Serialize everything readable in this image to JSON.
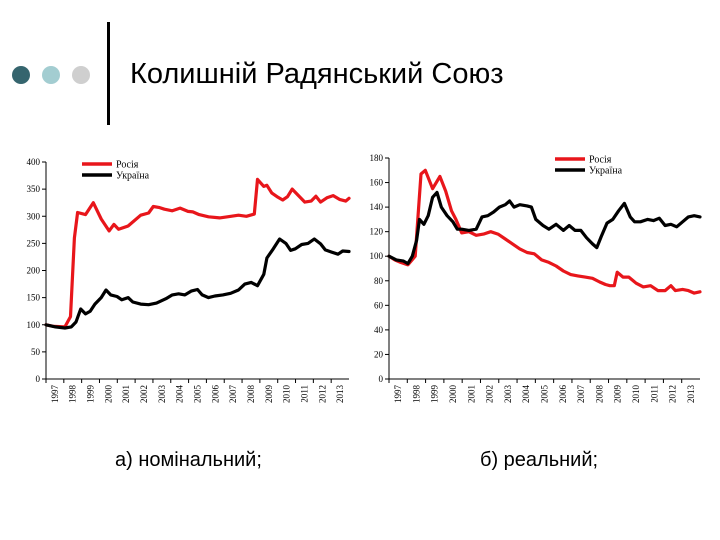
{
  "title": "Колишній Радянський Союз",
  "colors": {
    "dot1": "#35656e",
    "dot2": "#a3cdd1",
    "dot3": "#cfcfcf",
    "russia": "#e8161b",
    "ukraine": "#000000"
  },
  "captions": {
    "a": "а) номінальний;",
    "b": "б) реальний;"
  },
  "chart_data": [
    {
      "type": "line",
      "id": "a",
      "x": [
        "1997",
        "1998",
        "1999",
        "2000",
        "2001",
        "2002",
        "2003",
        "2004",
        "2005",
        "2006",
        "2007",
        "2008",
        "2009",
        "2010",
        "2011",
        "2012",
        "2013"
      ],
      "ylim": [
        0,
        400
      ],
      "yticks": [
        0,
        50,
        100,
        150,
        200,
        250,
        300,
        350,
        400
      ],
      "legend": "top-left",
      "series": [
        {
          "name": "Росія",
          "color": "#e8161b",
          "points": [
            [
              0,
              100
            ],
            [
              0.5,
              97
            ],
            [
              1.2,
              96
            ],
            [
              1.55,
              115
            ],
            [
              1.8,
              260
            ],
            [
              2.0,
              307
            ],
            [
              2.5,
              303
            ],
            [
              3.0,
              325
            ],
            [
              3.5,
              295
            ],
            [
              4.0,
              273
            ],
            [
              4.3,
              285
            ],
            [
              4.6,
              276
            ],
            [
              5.2,
              282
            ],
            [
              6.0,
              302
            ],
            [
              6.5,
              306
            ],
            [
              6.8,
              318
            ],
            [
              7.2,
              316
            ],
            [
              7.5,
              313
            ],
            [
              8.0,
              310
            ],
            [
              8.5,
              315
            ],
            [
              9.0,
              309
            ],
            [
              9.3,
              308
            ],
            [
              9.7,
              303
            ],
            [
              10.3,
              299
            ],
            [
              11.0,
              297
            ],
            [
              11.5,
              299
            ],
            [
              12.2,
              302
            ],
            [
              12.7,
              300
            ],
            [
              13.2,
              304
            ],
            [
              13.4,
              368
            ],
            [
              13.8,
              355
            ],
            [
              14.0,
              357
            ],
            [
              14.3,
              343
            ],
            [
              14.7,
              335
            ],
            [
              15.0,
              330
            ],
            [
              15.3,
              336
            ],
            [
              15.6,
              350
            ],
            [
              16.0,
              338
            ],
            [
              16.4,
              326
            ],
            [
              16.8,
              328
            ],
            [
              17.1,
              337
            ],
            [
              17.4,
              326
            ],
            [
              17.8,
              334
            ],
            [
              18.2,
              338
            ],
            [
              18.6,
              331
            ],
            [
              19.0,
              328
            ],
            [
              19.2,
              333
            ]
          ]
        },
        {
          "name": "Україна",
          "color": "#000000",
          "points": [
            [
              0,
              100
            ],
            [
              0.6,
              96
            ],
            [
              1.2,
              94
            ],
            [
              1.6,
              96
            ],
            [
              1.9,
              105
            ],
            [
              2.2,
              129
            ],
            [
              2.5,
              120
            ],
            [
              2.8,
              125
            ],
            [
              3.1,
              138
            ],
            [
              3.5,
              150
            ],
            [
              3.8,
              164
            ],
            [
              4.1,
              155
            ],
            [
              4.5,
              152
            ],
            [
              4.8,
              146
            ],
            [
              5.2,
              150
            ],
            [
              5.5,
              142
            ],
            [
              6.0,
              138
            ],
            [
              6.5,
              137
            ],
            [
              7.0,
              140
            ],
            [
              7.6,
              148
            ],
            [
              8.0,
              155
            ],
            [
              8.4,
              157
            ],
            [
              8.8,
              155
            ],
            [
              9.2,
              162
            ],
            [
              9.6,
              165
            ],
            [
              9.9,
              155
            ],
            [
              10.3,
              150
            ],
            [
              10.7,
              153
            ],
            [
              11.2,
              155
            ],
            [
              11.7,
              158
            ],
            [
              12.2,
              164
            ],
            [
              12.6,
              175
            ],
            [
              13.0,
              178
            ],
            [
              13.4,
              172
            ],
            [
              13.8,
              193
            ],
            [
              14.0,
              223
            ],
            [
              14.4,
              240
            ],
            [
              14.8,
              258
            ],
            [
              15.2,
              250
            ],
            [
              15.5,
              237
            ],
            [
              15.8,
              240
            ],
            [
              16.2,
              248
            ],
            [
              16.6,
              250
            ],
            [
              17.0,
              258
            ],
            [
              17.4,
              249
            ],
            [
              17.7,
              238
            ],
            [
              18.1,
              234
            ],
            [
              18.5,
              230
            ],
            [
              18.8,
              236
            ],
            [
              19.2,
              235
            ]
          ]
        }
      ]
    },
    {
      "type": "line",
      "id": "b",
      "x": [
        "1997",
        "1998",
        "1999",
        "2000",
        "2001",
        "2002",
        "2003",
        "2004",
        "2005",
        "2006",
        "2007",
        "2008",
        "2009",
        "2010",
        "2011",
        "2012",
        "2013"
      ],
      "ylim": [
        0,
        180
      ],
      "yticks": [
        0,
        20,
        40,
        60,
        80,
        100,
        120,
        140,
        160,
        180
      ],
      "legend": "top-right",
      "series": [
        {
          "name": "Росія",
          "color": "#e8161b",
          "points": [
            [
              0,
              100
            ],
            [
              0.4,
              97
            ],
            [
              0.8,
              95
            ],
            [
              1.3,
              93
            ],
            [
              1.8,
              100
            ],
            [
              2.2,
              167
            ],
            [
              2.5,
              170
            ],
            [
              3.0,
              155
            ],
            [
              3.5,
              165
            ],
            [
              3.9,
              153
            ],
            [
              4.3,
              137
            ],
            [
              4.6,
              130
            ],
            [
              5.0,
              119
            ],
            [
              5.5,
              120
            ],
            [
              6.0,
              117
            ],
            [
              6.5,
              118
            ],
            [
              7.0,
              120
            ],
            [
              7.5,
              118
            ],
            [
              8.0,
              114
            ],
            [
              8.5,
              110
            ],
            [
              9.0,
              106
            ],
            [
              9.5,
              103
            ],
            [
              10.0,
              102
            ],
            [
              10.5,
              97
            ],
            [
              11.0,
              95
            ],
            [
              11.5,
              92
            ],
            [
              12.0,
              88
            ],
            [
              12.5,
              85
            ],
            [
              13.0,
              84
            ],
            [
              13.5,
              83
            ],
            [
              14.0,
              82
            ],
            [
              14.5,
              79
            ],
            [
              14.9,
              77
            ],
            [
              15.2,
              76
            ],
            [
              15.5,
              76
            ],
            [
              15.7,
              87
            ],
            [
              16.1,
              83
            ],
            [
              16.5,
              83
            ],
            [
              17.0,
              78
            ],
            [
              17.5,
              75
            ],
            [
              18.0,
              76
            ],
            [
              18.5,
              72
            ],
            [
              19.0,
              72
            ],
            [
              19.4,
              76
            ],
            [
              19.7,
              72
            ],
            [
              20.2,
              73
            ],
            [
              20.6,
              72
            ],
            [
              21.0,
              70
            ],
            [
              21.4,
              71
            ]
          ]
        },
        {
          "name": "Україна",
          "color": "#000000",
          "points": [
            [
              0,
              100
            ],
            [
              0.5,
              97
            ],
            [
              1.0,
              96
            ],
            [
              1.3,
              94
            ],
            [
              1.6,
              100
            ],
            [
              1.9,
              113
            ],
            [
              2.1,
              130
            ],
            [
              2.4,
              126
            ],
            [
              2.7,
              133
            ],
            [
              3.0,
              148
            ],
            [
              3.3,
              152
            ],
            [
              3.6,
              140
            ],
            [
              4.0,
              133
            ],
            [
              4.4,
              128
            ],
            [
              4.7,
              122
            ],
            [
              5.0,
              122
            ],
            [
              5.5,
              121
            ],
            [
              6.0,
              122
            ],
            [
              6.4,
              132
            ],
            [
              6.8,
              133
            ],
            [
              7.2,
              136
            ],
            [
              7.6,
              140
            ],
            [
              8.0,
              142
            ],
            [
              8.3,
              145
            ],
            [
              8.6,
              140
            ],
            [
              9.0,
              142
            ],
            [
              9.5,
              141
            ],
            [
              9.8,
              140
            ],
            [
              10.1,
              130
            ],
            [
              10.6,
              125
            ],
            [
              11.0,
              122
            ],
            [
              11.5,
              126
            ],
            [
              12.0,
              121
            ],
            [
              12.4,
              125
            ],
            [
              12.8,
              121
            ],
            [
              13.2,
              121
            ],
            [
              13.6,
              115
            ],
            [
              14.0,
              110
            ],
            [
              14.3,
              107
            ],
            [
              14.6,
              116
            ],
            [
              15.0,
              127
            ],
            [
              15.4,
              130
            ],
            [
              15.8,
              137
            ],
            [
              16.2,
              143
            ],
            [
              16.6,
              132
            ],
            [
              16.9,
              128
            ],
            [
              17.3,
              128
            ],
            [
              17.8,
              130
            ],
            [
              18.2,
              129
            ],
            [
              18.6,
              131
            ],
            [
              19.0,
              125
            ],
            [
              19.4,
              126
            ],
            [
              19.8,
              124
            ],
            [
              20.2,
              128
            ],
            [
              20.6,
              132
            ],
            [
              21.0,
              133
            ],
            [
              21.4,
              132
            ]
          ]
        }
      ]
    }
  ]
}
